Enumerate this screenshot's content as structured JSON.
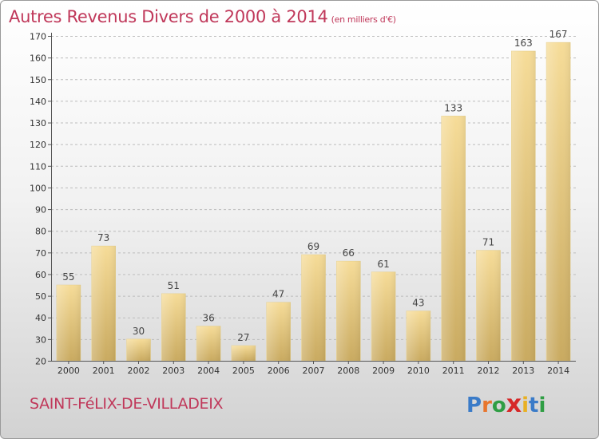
{
  "header": {
    "title": "Autres Revenus Divers de 2000 à 2014",
    "unit": "(en milliers d'€)"
  },
  "footer": {
    "commune": "SAINT-FéLIX-DE-VILLADEIX",
    "logo_letters": [
      "P",
      "r",
      "o",
      "x",
      "i",
      "t",
      "i"
    ],
    "logo_colors": [
      "#3a7bc8",
      "#e8762d",
      "#2f9e44",
      "#d62828",
      "#e8b023",
      "#3a7bc8",
      "#2f9e44"
    ]
  },
  "colors": {
    "title": "#c0385a",
    "bar_light": "#f6dc98",
    "bar_dark": "#c9aa60",
    "grid": "#bcbcbc",
    "axis": "#555555"
  },
  "chart_data": {
    "type": "bar",
    "title": "Autres Revenus Divers de 2000 à 2014",
    "subtitle": "(en milliers d'€)",
    "xlabel": "",
    "ylabel": "",
    "categories": [
      "2000",
      "2001",
      "2002",
      "2003",
      "2004",
      "2005",
      "2006",
      "2007",
      "2008",
      "2009",
      "2010",
      "2011",
      "2012",
      "2013",
      "2014"
    ],
    "values": [
      55,
      73,
      30,
      51,
      36,
      27,
      47,
      69,
      66,
      61,
      43,
      133,
      71,
      163,
      167
    ],
    "ylim": [
      20,
      170
    ],
    "yticks": [
      20,
      30,
      40,
      50,
      60,
      70,
      80,
      90,
      100,
      110,
      120,
      130,
      140,
      150,
      160,
      170
    ],
    "grid": true,
    "data_labels": true
  }
}
